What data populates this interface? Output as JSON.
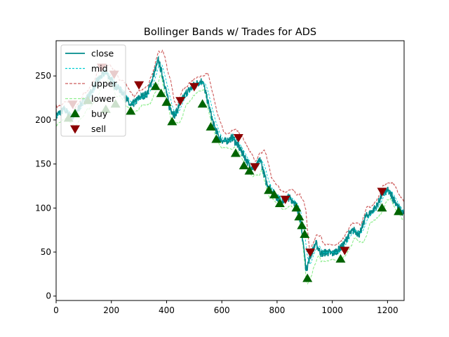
{
  "chart_data": {
    "type": "line",
    "title": "Bollinger Bands w/ Trades for ADS",
    "xlabel": "",
    "ylabel": "",
    "xlim": [
      0,
      1260
    ],
    "ylim": [
      -5,
      290
    ],
    "xticks": [
      0,
      200,
      400,
      600,
      800,
      1000,
      1200
    ],
    "yticks": [
      0,
      50,
      100,
      150,
      200,
      250
    ],
    "grid": false,
    "legend_position": "top-left",
    "colors": {
      "close": "#008b8b",
      "mid": "#00ced1",
      "upper": "#cd5c5c",
      "lower": "#90ee90",
      "buy": "#006400",
      "sell": "#8b0000"
    },
    "close_keypoints": {
      "x": [
        0,
        30,
        60,
        90,
        120,
        150,
        180,
        210,
        240,
        270,
        300,
        330,
        350,
        370,
        390,
        410,
        430,
        450,
        470,
        500,
        530,
        550,
        570,
        590,
        610,
        640,
        660,
        680,
        700,
        720,
        740,
        760,
        780,
        800,
        820,
        840,
        860,
        880,
        895,
        905,
        920,
        940,
        960,
        980,
        1000,
        1020,
        1040,
        1060,
        1080,
        1100,
        1120,
        1140,
        1160,
        1180,
        1200,
        1220,
        1240,
        1260
      ],
      "y": [
        205,
        212,
        202,
        218,
        228,
        245,
        255,
        240,
        232,
        215,
        225,
        230,
        248,
        268,
        245,
        215,
        205,
        220,
        230,
        240,
        245,
        220,
        195,
        180,
        175,
        180,
        170,
        160,
        148,
        145,
        155,
        130,
        120,
        112,
        108,
        112,
        108,
        95,
        60,
        30,
        45,
        60,
        48,
        50,
        48,
        52,
        58,
        70,
        75,
        70,
        90,
        95,
        102,
        115,
        120,
        112,
        100,
        92
      ]
    },
    "series": [
      {
        "name": "close"
      },
      {
        "name": "mid"
      },
      {
        "name": "upper"
      },
      {
        "name": "lower"
      },
      {
        "name": "buy",
        "x": [
          45,
          115,
          180,
          215,
          270,
          360,
          380,
          400,
          420,
          530,
          560,
          580,
          650,
          680,
          700,
          770,
          790,
          810,
          870,
          880,
          890,
          900,
          910,
          1030,
          1180,
          1240
        ],
        "y": [
          202,
          222,
          212,
          218,
          210,
          238,
          230,
          220,
          198,
          218,
          192,
          178,
          162,
          148,
          142,
          120,
          115,
          105,
          100,
          90,
          80,
          70,
          20,
          42,
          100,
          96
        ]
      },
      {
        "name": "sell",
        "x": [
          60,
          165,
          210,
          300,
          450,
          500,
          660,
          720,
          830,
          920,
          1045,
          1180
        ],
        "y": [
          218,
          260,
          252,
          240,
          222,
          238,
          180,
          147,
          110,
          50,
          52,
          119
        ]
      }
    ]
  }
}
